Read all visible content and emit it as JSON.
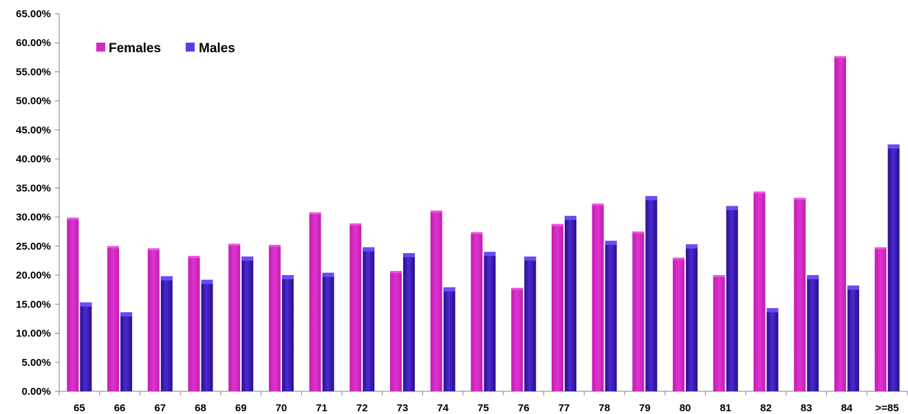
{
  "chart_data": {
    "type": "bar",
    "categories": [
      "65",
      "66",
      "67",
      "68",
      "69",
      "70",
      "71",
      "72",
      "73",
      "74",
      "75",
      "76",
      "77",
      "78",
      "79",
      "80",
      "81",
      "82",
      "83",
      "84",
      ">=85"
    ],
    "series": [
      {
        "name": "Females",
        "color": "#d42ac4",
        "values": [
          29.9,
          25.0,
          24.6,
          23.3,
          25.4,
          25.2,
          30.8,
          28.9,
          20.7,
          31.1,
          27.4,
          17.8,
          28.8,
          32.3,
          27.5,
          23.0,
          20.0,
          34.4,
          33.3,
          57.7,
          24.8
        ]
      },
      {
        "name": "Males",
        "color": "#3a16b0",
        "values": [
          15.3,
          13.6,
          19.8,
          19.2,
          23.2,
          20.0,
          20.4,
          24.8,
          23.8,
          17.9,
          24.0,
          23.2,
          30.2,
          25.9,
          33.6,
          25.3,
          31.9,
          14.3,
          20.0,
          18.2,
          42.5
        ]
      }
    ],
    "yticks": [
      "0.00%",
      "5.00%",
      "10.00%",
      "15.00%",
      "20.00%",
      "25.00%",
      "30.00%",
      "35.00%",
      "40.00%",
      "45.00%",
      "50.00%",
      "55.00%",
      "60.00%",
      "65.00%"
    ],
    "ylim": [
      0,
      65
    ],
    "grid": false,
    "legend_position": "top-left",
    "title": "",
    "xlabel": "",
    "ylabel": ""
  }
}
